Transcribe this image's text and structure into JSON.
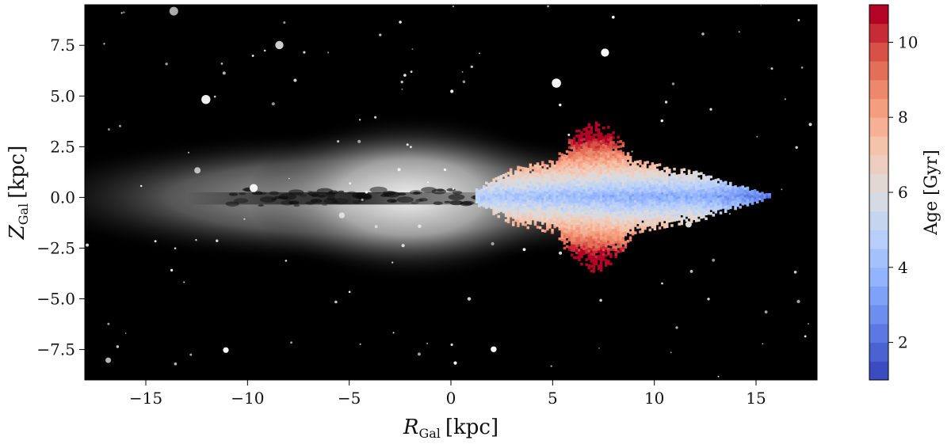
{
  "chart_data": {
    "type": "heatmap",
    "title": "",
    "xlabel": {
      "main": "R",
      "sub": "Gal",
      "unit": "[kpc]"
    },
    "ylabel": {
      "main": "Z",
      "sub": "Gal",
      "unit": "[kpc]"
    },
    "xlim": [
      -18,
      18
    ],
    "ylim": [
      -9,
      9.5
    ],
    "xticks": [
      {
        "value": -15,
        "label": "−15"
      },
      {
        "value": -10,
        "label": "−10"
      },
      {
        "value": -5,
        "label": "−5"
      },
      {
        "value": 0,
        "label": "0"
      },
      {
        "value": 5,
        "label": "5"
      },
      {
        "value": 10,
        "label": "10"
      },
      {
        "value": 15,
        "label": "15"
      }
    ],
    "yticks": [
      {
        "value": -7.5,
        "label": "−7.5"
      },
      {
        "value": -5.0,
        "label": "−5.0"
      },
      {
        "value": -2.5,
        "label": "−2.5"
      },
      {
        "value": 0.0,
        "label": "0.0"
      },
      {
        "value": 2.5,
        "label": "2.5"
      },
      {
        "value": 5.0,
        "label": "5.0"
      },
      {
        "value": 7.5,
        "label": "7.5"
      }
    ],
    "background": "grayscale edge-on galaxy image with dark dust lane along Z = 0",
    "colorbar": {
      "label": "Age [Gyr]",
      "range": [
        1,
        11
      ],
      "ticks": [
        {
          "value": 2,
          "label": "2"
        },
        {
          "value": 4,
          "label": "4"
        },
        {
          "value": 6,
          "label": "6"
        },
        {
          "value": 8,
          "label": "8"
        },
        {
          "value": 10,
          "label": "10"
        }
      ],
      "colormap": "coolwarm",
      "levels": 20,
      "colors": {
        "low": "#3b4cc0",
        "mid": "#dddddd",
        "high": "#b40426"
      }
    },
    "age_map": {
      "description": "binned stellar ages in the R–Z plane",
      "r_range": [
        1.2,
        15.6
      ],
      "z_range": [
        -3.7,
        4.0
      ],
      "trends": {
        "young_thin_layer": {
          "age_gyr": 4,
          "z_halfwidth_kpc": 0.3,
          "r_range": [
            3,
            15.5
          ]
        },
        "old_thick_flare": {
          "age_gyr": 9,
          "z_extent_kpc": 3.8,
          "r_range": [
            1.2,
            12.5
          ]
        }
      }
    }
  }
}
